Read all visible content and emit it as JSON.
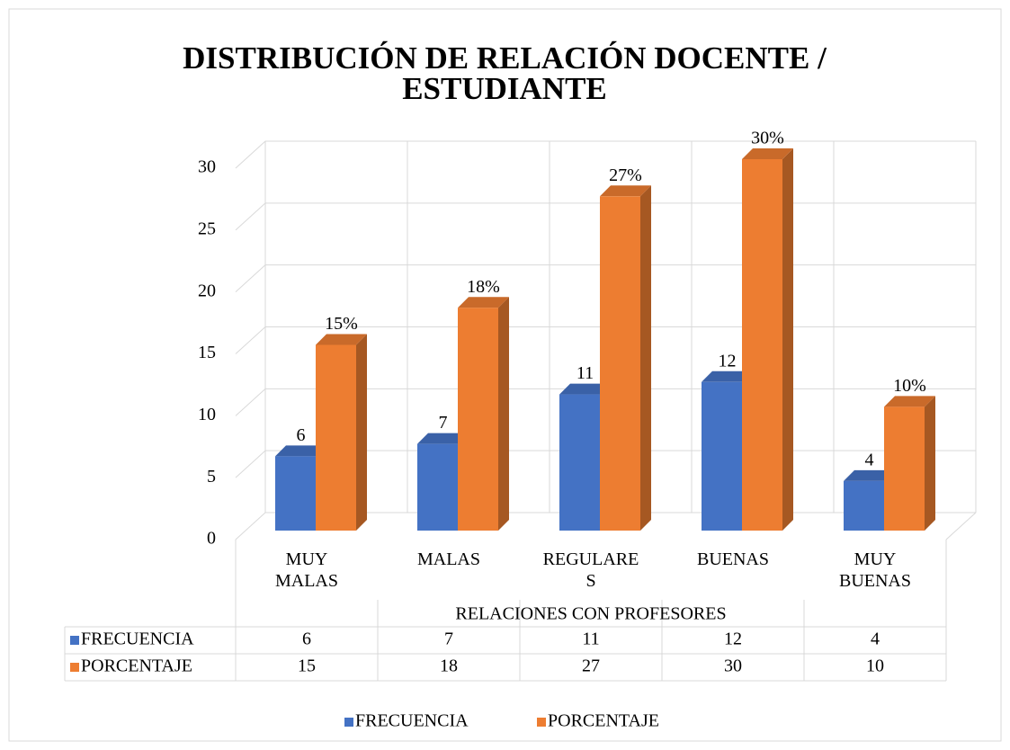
{
  "chart_data": {
    "type": "bar3d",
    "title": "DISTRIBUCIÓN DE RELACIÓN DOCENTE / ESTUDIANTE",
    "x_label": "RELACIONES CON PROFESORES",
    "categories": [
      "MUY MALAS",
      "MALAS",
      "REGULARES",
      "BUENAS",
      "MUY BUENAS"
    ],
    "series": [
      {
        "name": "FRECUENCIA",
        "color": "#4472c4",
        "values": [
          6,
          7,
          11,
          12,
          4
        ]
      },
      {
        "name": "PORCENTAJE",
        "color": "#ed7d31",
        "values": [
          15,
          18,
          27,
          30,
          10
        ],
        "value_labels": [
          "15%",
          "18%",
          "27%",
          "30%",
          "10%"
        ]
      }
    ],
    "ylim": [
      0,
      30
    ],
    "yticks": [
      0,
      5,
      10,
      15,
      20,
      25,
      30
    ],
    "grid": true,
    "legend": "bottom",
    "data_table": true
  }
}
